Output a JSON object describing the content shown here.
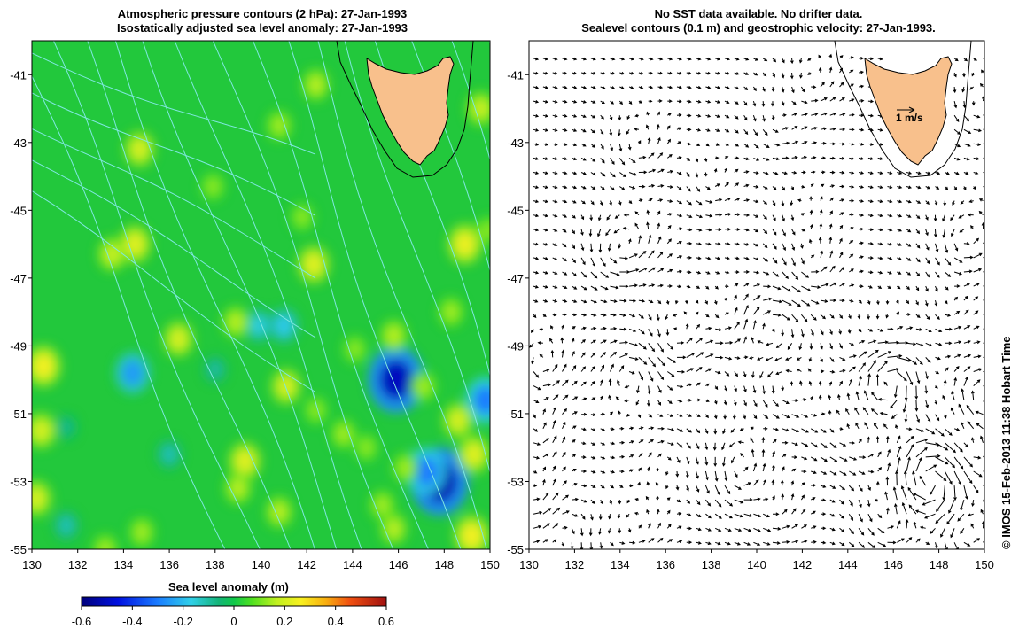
{
  "left_panel": {
    "title_line1": "Atmospheric pressure contours (2 hPa): 27-Jan-1993",
    "title_line2": "Isostatically adjusted sea level anomaly: 27-Jan-1993"
  },
  "right_panel": {
    "title_line1": "No SST data available.  No drifter data.",
    "title_line2": "Sealevel contours (0.1 m) and geostrophic velocity: 27-Jan-1993.",
    "scale_label": "1 m/s"
  },
  "axes": {
    "lon_ticks": [
      "130",
      "132",
      "134",
      "136",
      "138",
      "140",
      "142",
      "144",
      "146",
      "148",
      "150"
    ],
    "lat_ticks": [
      "-41",
      "-43",
      "-45",
      "-47",
      "-49",
      "-51",
      "-53",
      "-55"
    ],
    "lon_range": [
      130,
      150
    ],
    "lat_range": [
      -55,
      -40
    ]
  },
  "colorbar": {
    "label": "Sea level anomaly (m)",
    "ticks": [
      "-0.6",
      "-0.4",
      "-0.2",
      "0",
      "0.2",
      "0.4",
      "0.6"
    ],
    "range": [
      -0.6,
      0.6
    ]
  },
  "credit": "© IMOS 15-Feb-2013 11:38 Hobart Time",
  "colors": {
    "land": "#f8c08c",
    "contour_cyan": "#7fe8e0",
    "background_green": "#22c83c"
  },
  "anomalies": [
    {
      "lon": 145.9,
      "lat": -50.0,
      "v": -0.5
    },
    {
      "lon": 147.8,
      "lat": -53.0,
      "v": -0.52
    },
    {
      "lon": 147.2,
      "lat": -52.7,
      "v": -0.3
    },
    {
      "lon": 149.8,
      "lat": -50.6,
      "v": -0.3
    },
    {
      "lon": 134.4,
      "lat": -49.8,
      "v": -0.25
    },
    {
      "lon": 141.0,
      "lat": -48.4,
      "v": -0.18
    },
    {
      "lon": 139.9,
      "lat": -48.4,
      "v": -0.16
    },
    {
      "lon": 136.0,
      "lat": -52.2,
      "v": -0.12
    },
    {
      "lon": 131.5,
      "lat": -54.3,
      "v": -0.12
    },
    {
      "lon": 138.0,
      "lat": -49.7,
      "v": -0.1
    },
    {
      "lon": 131.5,
      "lat": -51.4,
      "v": -0.08
    },
    {
      "lon": 130.5,
      "lat": -49.6,
      "v": 0.25
    },
    {
      "lon": 130.4,
      "lat": -51.5,
      "v": 0.2
    },
    {
      "lon": 134.5,
      "lat": -46.0,
      "v": 0.22
    },
    {
      "lon": 133.5,
      "lat": -46.3,
      "v": 0.18
    },
    {
      "lon": 136.4,
      "lat": -48.8,
      "v": 0.2
    },
    {
      "lon": 134.7,
      "lat": -43.2,
      "v": 0.2
    },
    {
      "lon": 138.9,
      "lat": -48.3,
      "v": 0.16
    },
    {
      "lon": 142.3,
      "lat": -46.6,
      "v": 0.22
    },
    {
      "lon": 139.3,
      "lat": -52.4,
      "v": 0.22
    },
    {
      "lon": 139.0,
      "lat": -53.2,
      "v": 0.16
    },
    {
      "lon": 141.1,
      "lat": -50.2,
      "v": 0.2
    },
    {
      "lon": 142.4,
      "lat": -50.9,
      "v": 0.12
    },
    {
      "lon": 145.8,
      "lat": -48.7,
      "v": 0.16
    },
    {
      "lon": 147.1,
      "lat": -50.2,
      "v": 0.14
    },
    {
      "lon": 148.9,
      "lat": -46.0,
      "v": 0.24
    },
    {
      "lon": 149.6,
      "lat": -42.0,
      "v": 0.18
    },
    {
      "lon": 149.9,
      "lat": -45.6,
      "v": 0.12
    },
    {
      "lon": 148.6,
      "lat": -51.2,
      "v": 0.2
    },
    {
      "lon": 149.3,
      "lat": -52.2,
      "v": 0.22
    },
    {
      "lon": 149.2,
      "lat": -54.6,
      "v": 0.25
    },
    {
      "lon": 146.3,
      "lat": -52.6,
      "v": 0.14
    },
    {
      "lon": 145.3,
      "lat": -53.7,
      "v": 0.14
    },
    {
      "lon": 144.6,
      "lat": -52.0,
      "v": 0.12
    },
    {
      "lon": 143.6,
      "lat": -51.6,
      "v": 0.14
    },
    {
      "lon": 145.8,
      "lat": -54.4,
      "v": 0.16
    },
    {
      "lon": 140.8,
      "lat": -53.9,
      "v": 0.16
    },
    {
      "lon": 134.8,
      "lat": -54.5,
      "v": 0.14
    },
    {
      "lon": 130.2,
      "lat": -53.5,
      "v": 0.2
    },
    {
      "lon": 133.2,
      "lat": -55.0,
      "v": 0.14
    },
    {
      "lon": 141.8,
      "lat": -45.2,
      "v": 0.12
    },
    {
      "lon": 140.8,
      "lat": -42.5,
      "v": 0.14
    },
    {
      "lon": 137.9,
      "lat": -44.3,
      "v": 0.12
    },
    {
      "lon": 142.4,
      "lat": -41.3,
      "v": 0.16
    },
    {
      "lon": 148.3,
      "lat": -48.0,
      "v": 0.14
    },
    {
      "lon": 144.1,
      "lat": -49.1,
      "v": 0.12
    }
  ]
}
